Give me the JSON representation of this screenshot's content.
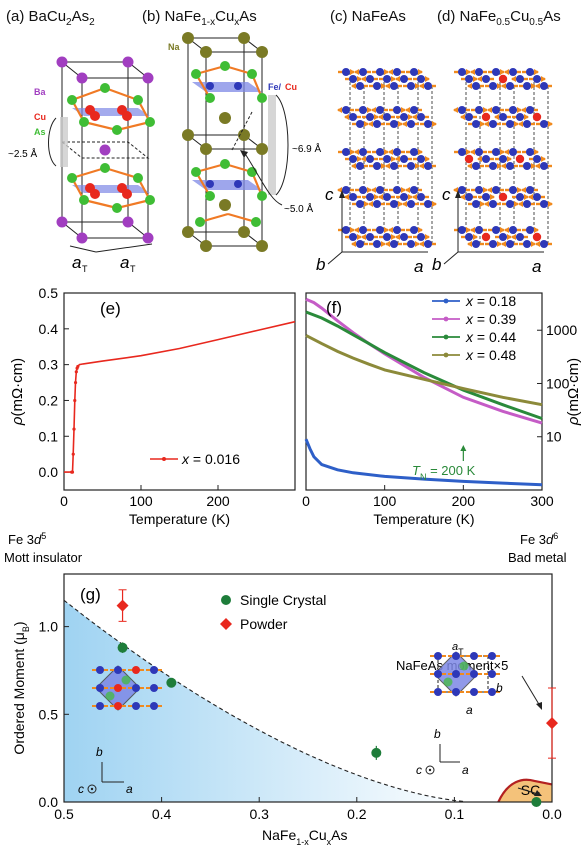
{
  "top_panels": [
    {
      "label": "(a)",
      "title_main": "BaCu",
      "title_sub": "2",
      "title_end": "As",
      "title_sub2": "2",
      "atom_labels": [
        "Ba",
        "Cu",
        "As"
      ],
      "annotation": "~2.5 Å",
      "axis_labels": [
        "a",
        "a"
      ],
      "axis_subs": [
        "T",
        "T"
      ]
    },
    {
      "label": "(b)",
      "title_main": "NaFe",
      "title_sub": "1-x",
      "title_end": "Cu",
      "title_sub2": "x",
      "title_tail": "As",
      "atom_labels": [
        "Na",
        "Fe/",
        "Cu"
      ],
      "annotations": [
        "~6.9 Å",
        "~5.0 Å"
      ]
    },
    {
      "label": "(c)",
      "title_main": "NaFeAs",
      "axis_labels": [
        "c",
        "b",
        "a"
      ]
    },
    {
      "label": "(d)",
      "title_main": "NaFe",
      "title_sub": "0.5",
      "title_end": "Cu",
      "title_sub2": "0.5",
      "title_tail": "As",
      "axis_labels": [
        "c",
        "b",
        "a"
      ]
    }
  ],
  "colors": {
    "ba": "#a13ec0",
    "cu": "#e8281e",
    "as": "#3fbd35",
    "na": "#7a7a25",
    "fe": "#2e38b8",
    "bond": "#f07a25",
    "plane": "#7d88e6",
    "spin": "#f08a1e",
    "series_018": "#2e5fc8",
    "series_039": "#c55cc6",
    "series_044": "#2a8a3a",
    "series_048": "#8c8a3a",
    "single_crystal": "#1e7d3a",
    "powder": "#e8281e",
    "sc_fill": "#f4c27a",
    "sc_line": "#b32020",
    "mott_fill": "#9fd3f2"
  },
  "chart_data": [
    {
      "type": "line",
      "panel": "(e)",
      "xlabel": "Temperature (K)",
      "ylabel": "ρ(mΩ·cm)",
      "xlim": [
        0,
        300
      ],
      "ylim": [
        -0.05,
        0.5
      ],
      "xticks": [
        "0",
        "100",
        "200"
      ],
      "yticks": [
        "0.0",
        "0.1",
        "0.2",
        "0.3",
        "0.4",
        "0.5"
      ],
      "series": [
        {
          "name": "x = 0.016",
          "x": [
            0,
            10,
            11,
            12,
            13,
            14,
            15,
            16,
            17,
            18,
            20,
            25,
            50,
            100,
            150,
            200,
            250,
            300
          ],
          "values": [
            0.0,
            0.0,
            0.0,
            0.05,
            0.12,
            0.2,
            0.25,
            0.28,
            0.29,
            0.295,
            0.3,
            0.302,
            0.31,
            0.325,
            0.345,
            0.37,
            0.395,
            0.42
          ]
        }
      ],
      "legend_prefix": "x",
      "legend_value": " = 0.016"
    },
    {
      "type": "line",
      "panel": "(f)",
      "xlabel": "Temperature (K)",
      "ylabel": "ρ(mΩ·cm)",
      "xlim": [
        0,
        300
      ],
      "yscale": "log",
      "ylim": [
        1,
        5000
      ],
      "xticks": [
        "0",
        "100",
        "200",
        "300"
      ],
      "yticks": [
        "10",
        "100",
        "1000"
      ],
      "annotation_main": "T",
      "annotation_sub": "N",
      "annotation_tail": " = 200 K",
      "series": [
        {
          "name": "x = 0.18",
          "x": [
            0,
            5,
            10,
            20,
            40,
            60,
            100,
            150,
            200,
            250,
            300
          ],
          "values": [
            9,
            6,
            4.2,
            3,
            2.4,
            2.1,
            1.8,
            1.6,
            1.45,
            1.35,
            1.25
          ]
        },
        {
          "name": "x = 0.39",
          "x": [
            0,
            10,
            20,
            40,
            60,
            80,
            100,
            150,
            200,
            250,
            300
          ],
          "values": [
            3800,
            3300,
            2600,
            1500,
            900,
            560,
            360,
            130,
            55,
            30,
            18
          ]
        },
        {
          "name": "x = 0.44",
          "x": [
            0,
            20,
            40,
            60,
            80,
            100,
            150,
            200,
            250,
            300
          ],
          "values": [
            2200,
            1700,
            1200,
            820,
            560,
            380,
            160,
            75,
            40,
            22
          ]
        },
        {
          "name": "x = 0.48",
          "x": [
            0,
            20,
            40,
            60,
            80,
            100,
            150,
            200,
            250,
            300
          ],
          "values": [
            800,
            560,
            400,
            300,
            230,
            180,
            120,
            80,
            55,
            40
          ]
        }
      ]
    },
    {
      "type": "scatter",
      "panel": "(g)",
      "xlabel_main": "NaFe",
      "xlabel_sub1": "1-x",
      "xlabel_mid": "Cu",
      "xlabel_sub2": "x",
      "xlabel_end": "As",
      "ylabel_main": "Ordered Moment (μ",
      "ylabel_sub": "B",
      "ylabel_end": ")",
      "xlim": [
        0.5,
        0.0
      ],
      "ylim": [
        0.0,
        1.3
      ],
      "xticks": [
        "0.5",
        "0.4",
        "0.3",
        "0.2",
        "0.1",
        "0.0"
      ],
      "yticks": [
        "0.0",
        "0.5",
        "1.0"
      ],
      "series": [
        {
          "name": "Single Crystal",
          "x": [
            0.44,
            0.39,
            0.18,
            0.016
          ],
          "values": [
            0.88,
            0.68,
            0.28,
            0.0
          ],
          "err": [
            0.03,
            0.01,
            0.04,
            0.01
          ]
        },
        {
          "name": "Powder",
          "x": [
            0.44,
            0.0
          ],
          "values": [
            1.12,
            0.45
          ],
          "err": [
            0.09,
            0.2
          ]
        }
      ],
      "left_label_line1_main": "Fe 3",
      "left_label_line1_d": "d",
      "left_label_line1_sup": "5",
      "left_label_line2": "Mott insulator",
      "right_label_line1_main": "Fe 3",
      "right_label_line1_d": "d",
      "right_label_line1_sup": "6",
      "right_label_line2": "Bad metal",
      "annotation": "NaFeAs moment×5",
      "sc_label": "SC",
      "inset_axes": [
        "b",
        "c",
        "a"
      ],
      "inset_right_labels": [
        "a",
        "T",
        "b",
        "a"
      ]
    }
  ]
}
